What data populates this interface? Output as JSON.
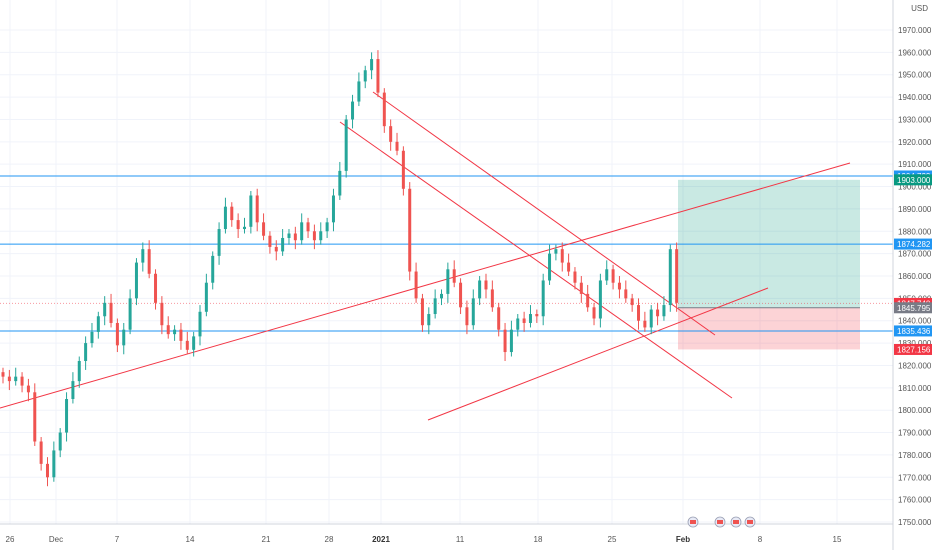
{
  "header": {
    "currency": "USD"
  },
  "chart_data": {
    "type": "candlestick",
    "y_ticks": [
      1970,
      1960,
      1950,
      1940,
      1930,
      1920,
      1910,
      1900,
      1890,
      1880,
      1870,
      1860,
      1850,
      1840,
      1830,
      1820,
      1810,
      1800,
      1790,
      1780,
      1770,
      1760,
      1750
    ],
    "y_tick_labels": [
      "1970.000",
      "1960.000",
      "1950.000",
      "1940.000",
      "1930.000",
      "1920.000",
      "1910.000",
      "1900.000",
      "1890.000",
      "1880.000",
      "1870.000",
      "1860.000",
      "1850.000",
      "1840.000",
      "1830.000",
      "1820.000",
      "1810.000",
      "1800.000",
      "1790.000",
      "1780.000",
      "1770.000",
      "1760.000",
      "1750.000"
    ],
    "ylim": [
      1745,
      1982
    ],
    "x_labels": [
      "26",
      "Dec",
      "7",
      "14",
      "21",
      "28",
      "2021",
      "11",
      "18",
      "25",
      "Feb",
      "8",
      "15"
    ],
    "bold_x_labels": [
      "2021",
      "Feb"
    ],
    "price_badges": [
      {
        "label": "1904.723",
        "value": 1904.723,
        "kind": "line",
        "color": "#2196f3"
      },
      {
        "label": "1903.000",
        "value": 1903.0,
        "kind": "target",
        "color": "#089981"
      },
      {
        "label": "1874.282",
        "value": 1874.282,
        "kind": "line",
        "color": "#2196f3"
      },
      {
        "label": "1847.740",
        "value": 1847.74,
        "kind": "price",
        "color": "#f23645"
      },
      {
        "label": "1845.795",
        "value": 1845.795,
        "kind": "entry",
        "color": "#787b86"
      },
      {
        "label": "1835.436",
        "value": 1835.436,
        "kind": "line",
        "color": "#2196f3"
      },
      {
        "label": "1827.156",
        "value": 1827.156,
        "kind": "stop",
        "color": "#f23645"
      }
    ],
    "horizontal_lines": [
      1904.723,
      1874.282,
      1835.436
    ],
    "position": {
      "entry": 1845.795,
      "target": 1903.0,
      "stop": 1827.156
    },
    "closes": [
      1815,
      1813,
      1815,
      1811,
      1808,
      1786,
      1776,
      1770,
      1782,
      1790,
      1805,
      1813,
      1822,
      1830,
      1835,
      1842,
      1848,
      1839,
      1829,
      1836,
      1850,
      1866,
      1872,
      1861,
      1848,
      1838,
      1834,
      1836,
      1831,
      1827,
      1833,
      1844,
      1857,
      1869,
      1881,
      1891,
      1885,
      1881,
      1882,
      1896,
      1884,
      1878,
      1873,
      1871,
      1877,
      1879,
      1876,
      1884,
      1880,
      1876,
      1880,
      1884,
      1896,
      1907,
      1930,
      1938,
      1947,
      1952,
      1957,
      1942,
      1927,
      1920,
      1916,
      1899,
      1862,
      1850,
      1838,
      1843,
      1850,
      1852,
      1863,
      1857,
      1846,
      1838,
      1850,
      1858,
      1854,
      1846,
      1836,
      1826,
      1836,
      1841,
      1839,
      1843,
      1842,
      1858,
      1870,
      1872,
      1866,
      1862,
      1857,
      1852,
      1846,
      1841,
      1858,
      1863,
      1857,
      1854,
      1850,
      1847,
      1840,
      1837,
      1845,
      1842,
      1847,
      1872,
      1848
    ]
  }
}
